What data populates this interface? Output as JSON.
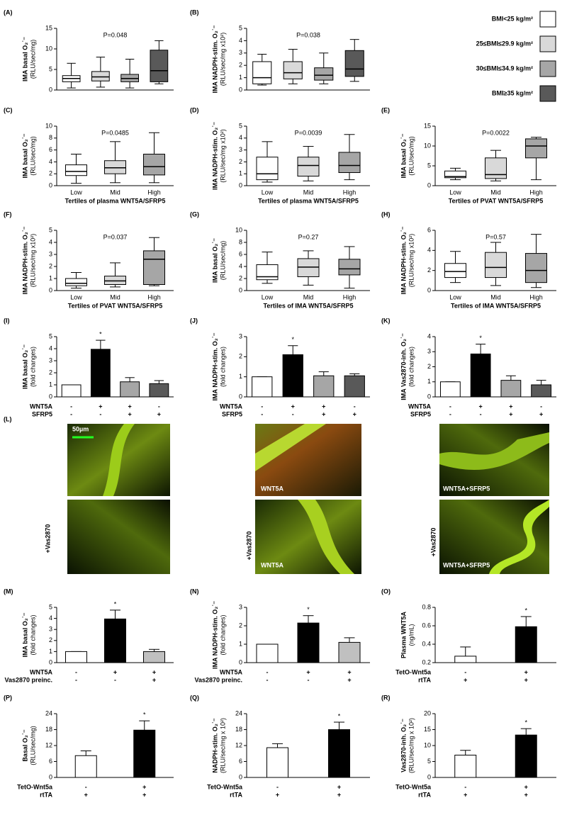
{
  "legend": [
    {
      "name": "BMI<25 kg/m²",
      "color": "#ffffff"
    },
    {
      "name": "25≤BMI≤29.9 kg/m²",
      "color": "#d9d9d9"
    },
    {
      "name": "30≤BMI≤34.9 kg/m²",
      "color": "#a6a6a6"
    },
    {
      "name": "BMI≥35 kg/m²",
      "color": "#595959"
    }
  ],
  "micrograph": {
    "label": "(L)",
    "scale_bar": "50µm",
    "panels": [
      "WNT5A",
      "WNT5A+SFRP5",
      "+Vas2870",
      "+Vas2870",
      "WNT5A",
      "+Vas2870",
      "WNT5A+SFRP5"
    ]
  },
  "chart_data": [
    {
      "type": "box",
      "panel": "(A)",
      "ylabel": "IMA basal O₂˙⁻",
      "yunit": "(RLU/sec/mg)",
      "annotation": "P=0.048",
      "ylim": [
        0,
        15
      ],
      "yticks": [
        0,
        5,
        10,
        15
      ],
      "colors": [
        "#ffffff",
        "#d9d9d9",
        "#a6a6a6",
        "#595959"
      ],
      "boxes": [
        {
          "min": 0.5,
          "q1": 2,
          "median": 2.8,
          "q3": 3.5,
          "max": 6.5
        },
        {
          "min": 0.7,
          "q1": 2.2,
          "median": 3.2,
          "q3": 4.5,
          "max": 8
        },
        {
          "min": 0.5,
          "q1": 2,
          "median": 2.8,
          "q3": 3.8,
          "max": 7.5
        },
        {
          "min": 1.5,
          "q1": 2,
          "median": 4.7,
          "q3": 9.7,
          "max": 12
        }
      ]
    },
    {
      "type": "box",
      "panel": "(B)",
      "ylabel": "IMA NADPH-stim. O₂˙⁻",
      "yunit": "(RLU/sec/mg x10²)",
      "annotation": "P=0.038",
      "ylim": [
        0,
        5
      ],
      "yticks": [
        0,
        1,
        2,
        3,
        4,
        5
      ],
      "colors": [
        "#ffffff",
        "#d9d9d9",
        "#a6a6a6",
        "#595959"
      ],
      "boxes": [
        {
          "min": 0.4,
          "q1": 0.5,
          "median": 1,
          "q3": 2.3,
          "max": 2.9
        },
        {
          "min": 0.5,
          "q1": 0.9,
          "median": 1.4,
          "q3": 2.3,
          "max": 3.3
        },
        {
          "min": 0.5,
          "q1": 0.8,
          "median": 1.2,
          "q3": 1.8,
          "max": 3
        },
        {
          "min": 0.7,
          "q1": 1.1,
          "median": 1.7,
          "q3": 3.2,
          "max": 4.1
        }
      ]
    },
    {
      "type": "box",
      "panel": "(C)",
      "ylabel": "IMA basal O₂˙⁻",
      "yunit": "(RLU/sec/mg)",
      "annotation": "P=0.0485",
      "xlabel": "Tertiles of plasma WNT5A/SFRP5",
      "categories": [
        "Low",
        "Mid",
        "High"
      ],
      "ylim": [
        0,
        10
      ],
      "yticks": [
        0,
        2,
        4,
        6,
        8,
        10
      ],
      "colors": [
        "#ffffff",
        "#d9d9d9",
        "#a6a6a6"
      ],
      "boxes": [
        {
          "min": 0.4,
          "q1": 1.7,
          "median": 2.4,
          "q3": 3.5,
          "max": 5.3
        },
        {
          "min": 0.5,
          "q1": 2,
          "median": 3,
          "q3": 4.2,
          "max": 7.4
        },
        {
          "min": 0.5,
          "q1": 1.8,
          "median": 3.2,
          "q3": 5.3,
          "max": 8.9
        }
      ]
    },
    {
      "type": "box",
      "panel": "(D)",
      "ylabel": "IMA NADPH-stim. O₂˙⁻",
      "yunit": "(RLU/sec/mg x10²)",
      "annotation": "P=0.0039",
      "xlabel": "Tertiles of plasma WNT5A/SFRP5",
      "categories": [
        "Low",
        "Mid",
        "High"
      ],
      "ylim": [
        0,
        5
      ],
      "yticks": [
        0,
        1,
        2,
        3,
        4,
        5
      ],
      "colors": [
        "#ffffff",
        "#d9d9d9",
        "#a6a6a6"
      ],
      "boxes": [
        {
          "min": 0.3,
          "q1": 0.5,
          "median": 1,
          "q3": 2.4,
          "max": 3.7
        },
        {
          "min": 0.4,
          "q1": 0.8,
          "median": 1.7,
          "q3": 2.4,
          "max": 3.3
        },
        {
          "min": 0.5,
          "q1": 1.1,
          "median": 1.7,
          "q3": 2.8,
          "max": 4.3
        }
      ]
    },
    {
      "type": "box",
      "panel": "(E)",
      "ylabel": "IMA basal O₂˙⁻",
      "yunit": "(RLU/sec/mg)",
      "annotation": "P=0.0022",
      "xlabel": "Tertiles of PVAT WNT5A/SFRP5",
      "categories": [
        "Low",
        "Mid",
        "High"
      ],
      "ylim": [
        0,
        15
      ],
      "yticks": [
        0,
        5,
        10,
        15
      ],
      "colors": [
        "#ffffff",
        "#d9d9d9",
        "#a6a6a6"
      ],
      "boxes": [
        {
          "min": 1.5,
          "q1": 2,
          "median": 2.3,
          "q3": 3.7,
          "max": 4.4
        },
        {
          "min": 1.2,
          "q1": 1.8,
          "median": 2.8,
          "q3": 7,
          "max": 8.9
        },
        {
          "min": 1.5,
          "q1": 7,
          "median": 10,
          "q3": 11.8,
          "max": 12.2
        }
      ]
    },
    {
      "type": "box",
      "panel": "(F)",
      "ylabel": "IMA NADPH-stim. O₂˙⁻",
      "yunit": "(RLU/sec/mg x10²)",
      "annotation": "P=0.037",
      "xlabel": "Tertiles of PVAT WNT5A/SFRP5",
      "categories": [
        "Low",
        "Mid",
        "High"
      ],
      "ylim": [
        0,
        5
      ],
      "yticks": [
        0,
        1,
        2,
        3,
        4,
        5
      ],
      "colors": [
        "#ffffff",
        "#d9d9d9",
        "#a6a6a6"
      ],
      "boxes": [
        {
          "min": 0.2,
          "q1": 0.4,
          "median": 0.6,
          "q3": 1,
          "max": 1.5
        },
        {
          "min": 0.3,
          "q1": 0.5,
          "median": 0.8,
          "q3": 1.2,
          "max": 2.3
        },
        {
          "min": 0.4,
          "q1": 0.5,
          "median": 2.6,
          "q3": 3.3,
          "max": 4.4
        }
      ]
    },
    {
      "type": "box",
      "panel": "(G)",
      "ylabel": "IMA basal O₂˙⁻",
      "yunit": "(RLU/sec/mg)",
      "annotation": "P=0.27",
      "xlabel": "Tertiles of IMA WNT5A/SFRP5",
      "categories": [
        "Low",
        "Mid",
        "High"
      ],
      "ylim": [
        0,
        10
      ],
      "yticks": [
        0,
        2,
        4,
        6,
        8,
        10
      ],
      "colors": [
        "#ffffff",
        "#d9d9d9",
        "#a6a6a6"
      ],
      "boxes": [
        {
          "min": 1.2,
          "q1": 1.8,
          "median": 2.3,
          "q3": 4.3,
          "max": 6.4
        },
        {
          "min": 0.9,
          "q1": 2.3,
          "median": 3.9,
          "q3": 5.3,
          "max": 6.6
        },
        {
          "min": 0.4,
          "q1": 2.6,
          "median": 3.6,
          "q3": 5.2,
          "max": 7.3
        }
      ]
    },
    {
      "type": "box",
      "panel": "(H)",
      "ylabel": "IMA NADPH-stim. O₂˙⁻",
      "yunit": "(RLU/sec/mg x10²)",
      "annotation": "P=0.57",
      "xlabel": "Tertiles of IMA WNT5A/SFRP5",
      "categories": [
        "Low",
        "Mid",
        "High"
      ],
      "ylim": [
        0,
        6
      ],
      "yticks": [
        0,
        2,
        4,
        6
      ],
      "colors": [
        "#ffffff",
        "#d9d9d9",
        "#a6a6a6"
      ],
      "boxes": [
        {
          "min": 0.8,
          "q1": 1.3,
          "median": 1.9,
          "q3": 2.7,
          "max": 3.9
        },
        {
          "min": 0.5,
          "q1": 1.3,
          "median": 2.3,
          "q3": 3.8,
          "max": 4.8
        },
        {
          "min": 0.3,
          "q1": 0.8,
          "median": 2,
          "q3": 3.7,
          "max": 5.6
        }
      ]
    },
    {
      "type": "bar",
      "panel": "(I)",
      "ylabel": "IMA basal O₂˙⁻",
      "yunit": "(fold changes)",
      "ylim": [
        0,
        5
      ],
      "yticks": [
        0,
        1,
        2,
        3,
        4,
        5
      ],
      "values": [
        1,
        3.95,
        1.25,
        1.1
      ],
      "errors": [
        0,
        0.75,
        0.35,
        0.25
      ],
      "colors": [
        "#ffffff",
        "#000000",
        "#a6a6a6",
        "#595959"
      ],
      "marker_labels": [
        null,
        "*",
        null,
        null
      ],
      "conditions": [
        {
          "name": "WNT5A",
          "signs": [
            "-",
            "+",
            "+",
            "-"
          ]
        },
        {
          "name": "SFRP5",
          "signs": [
            "-",
            "-",
            "+",
            "+"
          ]
        }
      ]
    },
    {
      "type": "bar",
      "panel": "(J)",
      "ylabel": "IMA NADPH-stim. O₂˙⁻",
      "yunit": "(fold changes)",
      "ylim": [
        0,
        3
      ],
      "yticks": [
        0,
        1,
        2,
        3
      ],
      "values": [
        1,
        2.1,
        1.05,
        1.05
      ],
      "errors": [
        0,
        0.45,
        0.2,
        0.1
      ],
      "colors": [
        "#ffffff",
        "#000000",
        "#a6a6a6",
        "#595959"
      ],
      "marker_labels": [
        null,
        "*",
        null,
        null
      ],
      "conditions": [
        {
          "name": "WNT5A",
          "signs": [
            "-",
            "+",
            "+",
            "-"
          ]
        },
        {
          "name": "SFRP5",
          "signs": [
            "-",
            "-",
            "+",
            "+"
          ]
        }
      ]
    },
    {
      "type": "bar",
      "panel": "(K)",
      "ylabel": "IMA Vas2870-inh. O₂˙⁻",
      "yunit": "(fold changes)",
      "ylim": [
        0,
        4
      ],
      "yticks": [
        0,
        1,
        2,
        3,
        4
      ],
      "values": [
        1,
        2.85,
        1.1,
        0.8
      ],
      "errors": [
        0,
        0.65,
        0.3,
        0.3
      ],
      "colors": [
        "#ffffff",
        "#000000",
        "#a6a6a6",
        "#595959"
      ],
      "marker_labels": [
        null,
        "*",
        null,
        null
      ],
      "conditions": [
        {
          "name": "WNT5A",
          "signs": [
            "-",
            "+",
            "+",
            "-"
          ]
        },
        {
          "name": "SFRP5",
          "signs": [
            "-",
            "-",
            "+",
            "+"
          ]
        }
      ]
    },
    {
      "type": "bar",
      "panel": "(M)",
      "ylabel": "IMA basal O₂˙⁻",
      "yunit": "(fold changes)",
      "ylim": [
        0,
        5
      ],
      "yticks": [
        0,
        1,
        2,
        3,
        4,
        5
      ],
      "values": [
        1,
        3.95,
        1
      ],
      "errors": [
        0,
        0.8,
        0.2
      ],
      "colors": [
        "#ffffff",
        "#000000",
        "#c0c0c0"
      ],
      "marker_labels": [
        null,
        "*",
        null
      ],
      "conditions": [
        {
          "name": "WNT5A",
          "signs": [
            "-",
            "+",
            "+"
          ]
        },
        {
          "name": "Vas2870 preinc.",
          "signs": [
            "-",
            "-",
            "+"
          ]
        }
      ]
    },
    {
      "type": "bar",
      "panel": "(N)",
      "ylabel": "IMA NADPH-stim. O₂˙⁻",
      "yunit": "(fold changes)",
      "ylim": [
        0,
        3
      ],
      "yticks": [
        0,
        1,
        2,
        3
      ],
      "values": [
        1,
        2.15,
        1.1
      ],
      "errors": [
        0,
        0.4,
        0.25
      ],
      "colors": [
        "#ffffff",
        "#000000",
        "#c0c0c0"
      ],
      "marker_labels": [
        null,
        "*",
        null
      ],
      "conditions": [
        {
          "name": "WNT5A",
          "signs": [
            "-",
            "+",
            "+"
          ]
        },
        {
          "name": "Vas2870 preinc.",
          "signs": [
            "-",
            "-",
            "+"
          ]
        }
      ]
    },
    {
      "type": "bar",
      "panel": "(O)",
      "ylabel": "Plasma WNT5A",
      "yunit": "(ng/mL)",
      "ylim": [
        0.2,
        0.8
      ],
      "yticks": [
        0.2,
        0.4,
        0.6,
        0.8
      ],
      "values": [
        0.27,
        0.59
      ],
      "errors": [
        0.1,
        0.11
      ],
      "colors": [
        "#ffffff",
        "#000000"
      ],
      "marker_labels": [
        null,
        "*"
      ],
      "conditions": [
        {
          "name": "TetO-Wnt5a",
          "signs": [
            "-",
            "+"
          ]
        },
        {
          "name": "rtTA",
          "signs": [
            "+",
            "+"
          ]
        }
      ]
    },
    {
      "type": "bar",
      "panel": "(P)",
      "ylabel": "Basal O₂˙⁻",
      "yunit": "(RLU/sec/mg)",
      "ylim": [
        0,
        24
      ],
      "yticks": [
        0,
        6,
        12,
        18,
        24
      ],
      "values": [
        8.2,
        17.8
      ],
      "errors": [
        1.8,
        3.5
      ],
      "colors": [
        "#ffffff",
        "#000000"
      ],
      "marker_labels": [
        null,
        "*"
      ],
      "conditions": [
        {
          "name": "TetO-Wnt5a",
          "signs": [
            "-",
            "+"
          ]
        },
        {
          "name": "rtTA",
          "signs": [
            "+",
            "+"
          ]
        }
      ]
    },
    {
      "type": "bar",
      "panel": "(Q)",
      "ylabel": "NADPH-stim. O₂˙⁻",
      "yunit": "(RLU/sec/mg x 10²)",
      "ylim": [
        0,
        24
      ],
      "yticks": [
        0,
        6,
        12,
        18,
        24
      ],
      "values": [
        11.2,
        18
      ],
      "errors": [
        1.5,
        2.8
      ],
      "colors": [
        "#ffffff",
        "#000000"
      ],
      "marker_labels": [
        null,
        "*"
      ],
      "conditions": [
        {
          "name": "TetO-Wnt5a",
          "signs": [
            "-",
            "+"
          ]
        },
        {
          "name": "rtTA",
          "signs": [
            "+",
            "+"
          ]
        }
      ]
    },
    {
      "type": "bar",
      "panel": "(R)",
      "ylabel": "Vas2870-inh. O₂˙⁻",
      "yunit": "(RLU/sec/mg x 10²)",
      "ylim": [
        0,
        20
      ],
      "yticks": [
        0,
        5,
        10,
        15,
        20
      ],
      "values": [
        7,
        13.3
      ],
      "errors": [
        1.5,
        2
      ],
      "colors": [
        "#ffffff",
        "#000000"
      ],
      "marker_labels": [
        null,
        "*"
      ],
      "conditions": [
        {
          "name": "TetO-Wnt5a",
          "signs": [
            "-",
            "+"
          ]
        },
        {
          "name": "rtTA",
          "signs": [
            "+",
            "+"
          ]
        }
      ]
    }
  ]
}
